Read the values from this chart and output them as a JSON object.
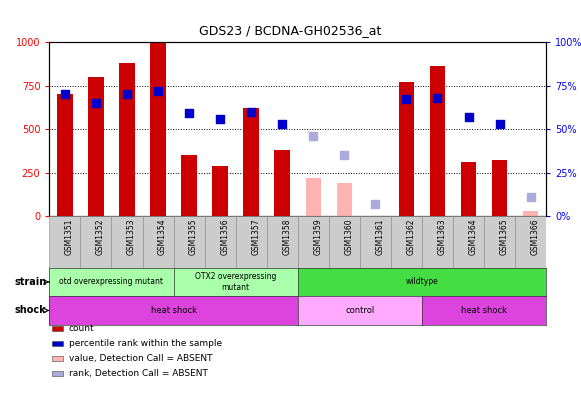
{
  "title": "GDS23 / BCDNA-GH02536_at",
  "samples": [
    "GSM1351",
    "GSM1352",
    "GSM1353",
    "GSM1354",
    "GSM1355",
    "GSM1356",
    "GSM1357",
    "GSM1358",
    "GSM1359",
    "GSM1360",
    "GSM1361",
    "GSM1362",
    "GSM1363",
    "GSM1364",
    "GSM1365",
    "GSM1366"
  ],
  "bar_values": [
    700,
    800,
    880,
    1000,
    350,
    290,
    620,
    380,
    null,
    null,
    null,
    770,
    860,
    310,
    320,
    null
  ],
  "bar_absent": [
    null,
    null,
    null,
    null,
    null,
    null,
    null,
    null,
    220,
    190,
    null,
    null,
    null,
    null,
    null,
    30
  ],
  "dot_values": [
    70,
    65,
    70,
    72,
    59,
    56,
    60,
    53,
    null,
    null,
    null,
    67,
    68,
    57,
    53,
    null
  ],
  "dot_absent": [
    null,
    null,
    null,
    null,
    null,
    null,
    null,
    null,
    46,
    35,
    7,
    null,
    null,
    null,
    null,
    11
  ],
  "ylim_left": [
    0,
    1000
  ],
  "ylim_right": [
    0,
    100
  ],
  "yticks_left": [
    0,
    250,
    500,
    750,
    1000
  ],
  "yticks_right": [
    0,
    25,
    50,
    75,
    100
  ],
  "bar_color": "#cc0000",
  "bar_absent_color": "#ffb3b3",
  "dot_color": "#0000cc",
  "dot_absent_color": "#aaaadd",
  "chart_bg": "#ffffff",
  "strain_defs": [
    {
      "start": 0,
      "end": 3,
      "label": "otd overexpressing mutant",
      "color": "#aaffaa"
    },
    {
      "start": 4,
      "end": 7,
      "label": "OTX2 overexpressing\nmutant",
      "color": "#aaffaa"
    },
    {
      "start": 8,
      "end": 15,
      "label": "wildtype",
      "color": "#44dd44"
    }
  ],
  "shock_defs": [
    {
      "start": 0,
      "end": 7,
      "label": "heat shock",
      "color": "#dd44dd"
    },
    {
      "start": 8,
      "end": 11,
      "label": "control",
      "color": "#ffaaff"
    },
    {
      "start": 12,
      "end": 15,
      "label": "heat shock",
      "color": "#dd44dd"
    }
  ],
  "legend_items": [
    {
      "color": "#cc0000",
      "label": "count"
    },
    {
      "color": "#0000cc",
      "label": "percentile rank within the sample"
    },
    {
      "color": "#ffb3b3",
      "label": "value, Detection Call = ABSENT"
    },
    {
      "color": "#aaaadd",
      "label": "rank, Detection Call = ABSENT"
    }
  ]
}
